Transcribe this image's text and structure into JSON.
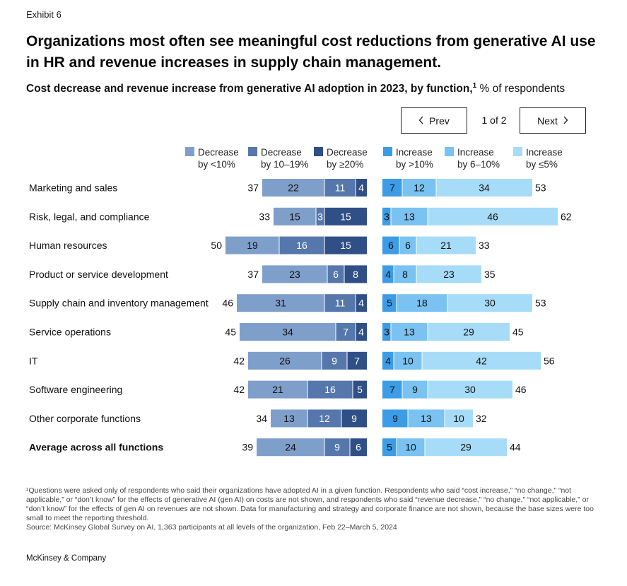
{
  "exhibit_label": "Exhibit 6",
  "title": "Organizations most often see meaningful cost reductions from generative AI use in HR and revenue increases in supply chain management.",
  "subtitle_bold": "Cost decrease and revenue increase from generative AI adoption in 2023, by function,",
  "subtitle_sup": "1",
  "subtitle_rest": " % of respondents",
  "pager": {
    "prev_label": "Prev",
    "next_label": "Next",
    "page_text": "1 of 2"
  },
  "icons": {
    "prev": "chevron-left-icon",
    "next": "chevron-right-icon"
  },
  "colors": {
    "dec_lt10": "#7f9fcb",
    "dec_10_19": "#5577ac",
    "dec_ge20": "#2f4f86",
    "inc_gt10": "#3c9ce6",
    "inc_6_10": "#79c2f1",
    "inc_le5": "#a6dcf8"
  },
  "legend": [
    {
      "line1": "Decrease",
      "line2": "by <10%"
    },
    {
      "line1": "Decrease",
      "line2": "by 10–19%"
    },
    {
      "line1": "Decrease",
      "line2": "by ≥20%"
    },
    {
      "line1": "Increase",
      "line2": "by >10%"
    },
    {
      "line1": "Increase",
      "line2": "by 6–10%"
    },
    {
      "line1": "Increase",
      "line2": "by ≤5%"
    }
  ],
  "chart_data": {
    "type": "bar",
    "categories": [
      "Marketing and sales",
      "Risk, legal, and compliance",
      "Human resources",
      "Product or service development",
      "Supply chain and inventory management",
      "Service operations",
      "IT",
      "Software engineering",
      "Other corporate functions",
      "Average across all functions"
    ],
    "decrease_series": [
      {
        "name": "Decrease by <10%",
        "values": [
          22,
          15,
          19,
          23,
          31,
          34,
          26,
          21,
          13,
          24
        ]
      },
      {
        "name": "Decrease by 10–19%",
        "values": [
          11,
          3,
          16,
          6,
          11,
          7,
          9,
          16,
          12,
          9
        ]
      },
      {
        "name": "Decrease by ≥20%",
        "values": [
          4,
          15,
          15,
          8,
          4,
          4,
          7,
          5,
          9,
          6
        ]
      }
    ],
    "decrease_totals": [
      37,
      33,
      50,
      37,
      46,
      45,
      42,
      42,
      34,
      39
    ],
    "increase_series": [
      {
        "name": "Increase by >10%",
        "values": [
          7,
          3,
          6,
          4,
          5,
          3,
          4,
          7,
          9,
          5
        ]
      },
      {
        "name": "Increase by 6–10%",
        "values": [
          12,
          13,
          6,
          8,
          18,
          13,
          10,
          9,
          13,
          10
        ]
      },
      {
        "name": "Increase by ≤5%",
        "values": [
          34,
          46,
          21,
          23,
          30,
          29,
          42,
          30,
          10,
          29
        ]
      }
    ],
    "increase_totals": [
      53,
      62,
      33,
      35,
      53,
      45,
      56,
      46,
      32,
      44
    ],
    "bold_category_index": 9
  },
  "footnote": "¹Questions were asked only of respondents who said their organizations have adopted AI in a given function. Respondents who said “cost increase,” “no change,” “not applicable,” or “don’t know” for the effects of generative AI (gen AI) on costs are not shown, and respondents who said “revenue decrease,” “no change,” “not applicable,” or “don’t know” for the effects of gen AI on revenues are not shown. Data for manufacturing and strategy and corporate finance are not shown, because the base sizes were too small to meet the reporting threshold.",
  "source": "Source: McKinsey Global Survey on AI, 1,363 participants at all levels of the organization, Feb 22–March 5, 2024",
  "brand": "McKinsey & Company"
}
